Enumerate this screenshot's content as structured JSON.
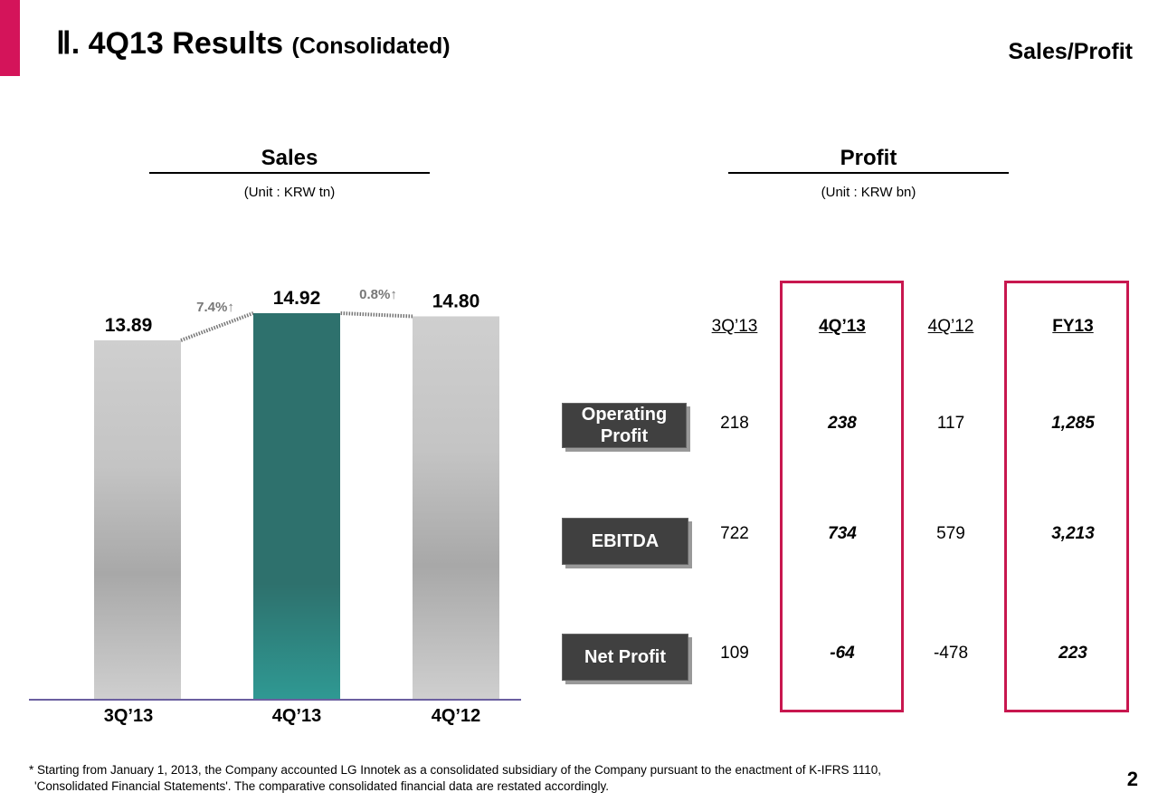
{
  "header": {
    "roman": "Ⅱ.",
    "title": "4Q13 Results",
    "subtitle": "(Consolidated)",
    "section": "Sales/Profit"
  },
  "sales": {
    "heading": "Sales",
    "unit": "(Unit : KRW tn)"
  },
  "profit": {
    "heading": "Profit",
    "unit": "(Unit : KRW bn)",
    "columns": [
      "3Q’13",
      "4Q’13",
      "4Q’12",
      "FY13"
    ],
    "rows": [
      {
        "label": "Operating Profit",
        "values": [
          "218",
          "238",
          "117",
          "1,285"
        ]
      },
      {
        "label": "EBITDA",
        "values": [
          "722",
          "734",
          "579",
          "3,213"
        ]
      },
      {
        "label": "Net Profit",
        "values": [
          "109",
          "-64",
          "-478",
          "223"
        ]
      }
    ]
  },
  "chart_data": {
    "type": "bar",
    "title": "Sales",
    "ylabel": "KRW tn",
    "categories": [
      "3Q’13",
      "4Q’13",
      "4Q’12"
    ],
    "values": [
      13.89,
      14.92,
      14.8
    ],
    "value_labels": [
      "13.89",
      "14.92",
      "14.80"
    ],
    "growth": [
      {
        "label": "7.4%↑",
        "from": 0,
        "to": 1
      },
      {
        "label": "0.8%↑",
        "from": 2,
        "to": 1
      }
    ],
    "colors": [
      "#cccccc",
      "#2e716d",
      "#cccccc"
    ]
  },
  "footnote": [
    "* Starting from January 1, 2013, the Company accounted LG Innotek as a consolidated subsidiary of the Company pursuant to the enactment of K-IFRS 1110,",
    "'Consolidated Financial Statements'. The comparative consolidated financial data are restated accordingly."
  ],
  "page": "2"
}
